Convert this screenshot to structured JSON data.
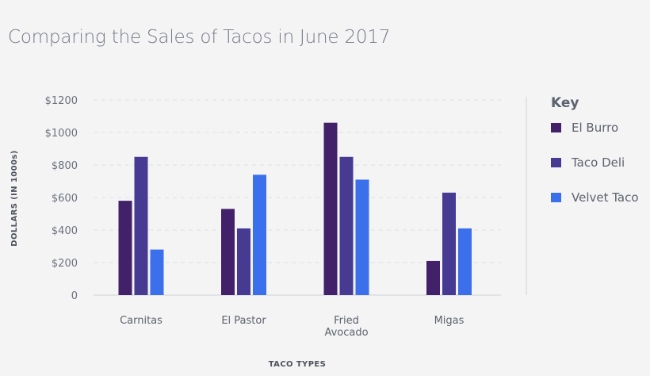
{
  "chart_data": {
    "type": "bar",
    "title": "Comparing the Sales of Tacos in June 2017",
    "xlabel": "TACO TYPES",
    "ylabel": "DOLLARS (IN 1000s)",
    "categories": [
      [
        "Carnitas"
      ],
      [
        "El Pastor"
      ],
      [
        "Fried",
        "Avocado"
      ],
      [
        "Migas"
      ]
    ],
    "ylim": [
      0,
      1200
    ],
    "yticks": [
      0,
      200,
      400,
      600,
      800,
      1000,
      1200
    ],
    "ytick_labels": [
      "0",
      "$200",
      "$400",
      "$600",
      "$800",
      "$1000",
      "$1200"
    ],
    "grid": true,
    "legend": {
      "title": "Key",
      "placement": "right"
    },
    "series": [
      {
        "name": "El Burro",
        "color": "#42206a",
        "values": [
          580,
          530,
          1060,
          210
        ]
      },
      {
        "name": "Taco Deli",
        "color": "#463a93",
        "values": [
          850,
          410,
          850,
          630
        ]
      },
      {
        "name": "Velvet Taco",
        "color": "#3b6fec",
        "values": [
          280,
          740,
          710,
          410
        ]
      }
    ]
  }
}
